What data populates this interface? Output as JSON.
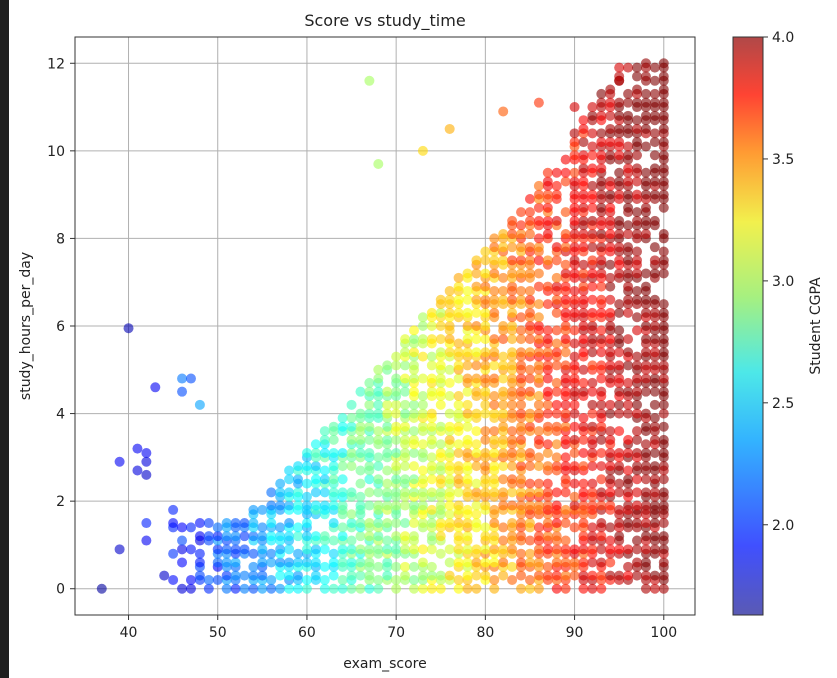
{
  "chart_data": {
    "type": "scatter",
    "title": "Score vs study_time",
    "xlabel": "exam_score",
    "ylabel": "study_hours_per_day",
    "xlim": [
      34,
      103.5
    ],
    "ylim": [
      -0.6,
      12.6
    ],
    "xticks": [
      40,
      50,
      60,
      70,
      80,
      90,
      100
    ],
    "yticks": [
      0,
      2,
      4,
      6,
      8,
      10,
      12
    ],
    "grid": true,
    "colorbar": {
      "label": "Student CGPA",
      "range": [
        1.63,
        4.0
      ],
      "ticks": [
        2.0,
        2.5,
        3.0,
        3.5,
        4.0
      ],
      "tick_labels": [
        "2.0",
        "2.5",
        "3.0",
        "3.5",
        "4.0"
      ],
      "colormap": "jet",
      "alpha": 0.6
    },
    "color_by": "cgpa",
    "x_step": 1,
    "y_step": 0.1,
    "point_density_note": "dense grid of points; selected representative points listed",
    "points": [
      [
        37,
        0.0,
        1.7
      ],
      [
        39,
        0.9,
        1.8
      ],
      [
        39,
        2.9,
        1.9
      ],
      [
        40,
        5.95,
        1.75
      ],
      [
        41,
        2.7,
        1.85
      ],
      [
        41,
        3.2,
        1.9
      ],
      [
        42,
        2.6,
        1.8
      ],
      [
        42,
        3.1,
        1.9
      ],
      [
        42,
        2.9,
        1.85
      ],
      [
        43,
        4.6,
        1.9
      ],
      [
        42,
        1.1,
        1.9
      ],
      [
        42,
        1.5,
        2.0
      ],
      [
        44,
        0.3,
        1.8
      ],
      [
        45,
        1.8,
        2.0
      ],
      [
        46,
        4.8,
        2.2
      ],
      [
        46,
        4.5,
        2.1
      ],
      [
        47,
        4.8,
        2.1
      ],
      [
        48,
        4.2,
        2.3
      ],
      [
        67,
        11.6,
        2.9
      ],
      [
        68,
        9.7,
        2.9
      ],
      [
        73,
        10.0,
        3.2
      ],
      [
        76,
        10.5,
        3.3
      ],
      [
        82,
        10.9,
        3.5
      ],
      [
        86,
        11.1,
        3.6
      ],
      [
        90,
        11.0,
        3.8
      ],
      [
        95,
        11.6,
        3.9
      ],
      [
        98,
        12.0,
        3.95
      ],
      [
        100,
        12.0,
        4.0
      ]
    ]
  }
}
